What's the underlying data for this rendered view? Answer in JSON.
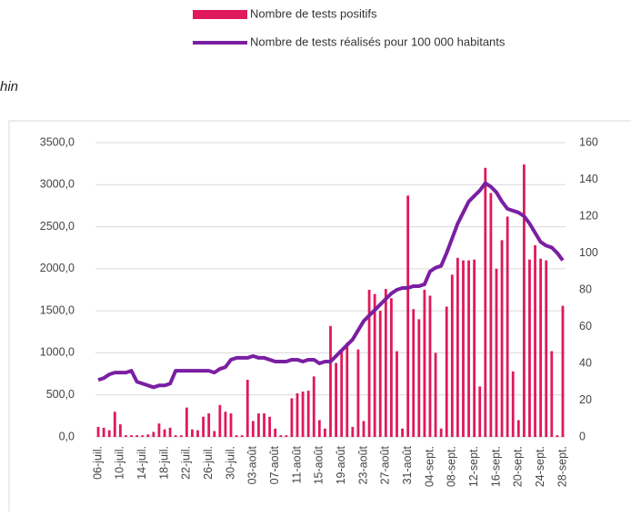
{
  "chart_data": {
    "type": "bar",
    "title": "hin",
    "categories": [
      "06-juil.",
      null,
      null,
      null,
      "10-juil.",
      null,
      null,
      null,
      "14-juil.",
      null,
      null,
      null,
      "18-juil.",
      null,
      null,
      null,
      "22-juil.",
      null,
      null,
      null,
      "26-juil.",
      null,
      null,
      null,
      "30-juil.",
      null,
      null,
      null,
      "03-août",
      null,
      null,
      null,
      "07-août",
      null,
      null,
      null,
      "11-août",
      null,
      null,
      null,
      "15-août",
      null,
      null,
      null,
      "19-août",
      null,
      null,
      null,
      "23-août",
      null,
      null,
      null,
      "27-août",
      null,
      null,
      null,
      "31-août",
      null,
      null,
      null,
      "04-sept.",
      null,
      null,
      null,
      "08-sept.",
      null,
      null,
      null,
      "12-sept.",
      null,
      null,
      null,
      "16-sept.",
      null,
      null,
      null,
      "20-sept.",
      null,
      null,
      null,
      "24-sept.",
      null,
      null,
      null,
      "28-sept."
    ],
    "series": [
      {
        "name": "Nombre de tests positifs",
        "type": "bar",
        "color": "#e0195a",
        "values": [
          120,
          110,
          80,
          300,
          150,
          20,
          20,
          20,
          20,
          30,
          60,
          160,
          90,
          110,
          20,
          20,
          350,
          90,
          80,
          240,
          280,
          70,
          380,
          300,
          280,
          20,
          20,
          680,
          190,
          280,
          280,
          240,
          100,
          20,
          20,
          460,
          520,
          540,
          550,
          720,
          200,
          100,
          1320,
          880,
          1020,
          1120,
          120,
          1040,
          190,
          1750,
          1700,
          1500,
          1760,
          1650,
          1020,
          100,
          2870,
          1520,
          1400,
          1750,
          1680,
          1000,
          100,
          1550,
          1930,
          2130,
          2100,
          2100,
          2110,
          600,
          3200,
          2900,
          2000,
          2340,
          2620,
          780,
          200,
          3240,
          2110,
          2280,
          2120,
          2100,
          1020,
          20,
          1560
        ]
      },
      {
        "name": "Nombre de tests réalisés pour 100 000 habitants",
        "type": "line",
        "axis": "y2",
        "color": "#7a1fa2",
        "values": [
          31,
          32,
          34,
          35,
          35,
          35,
          36,
          30,
          29,
          28,
          27,
          28,
          28,
          29,
          36,
          36,
          36,
          36,
          36,
          36,
          36,
          35,
          37,
          38,
          42,
          43,
          43,
          43,
          44,
          43,
          43,
          42,
          41,
          41,
          41,
          42,
          42,
          41,
          42,
          42,
          40,
          41,
          41,
          44,
          47,
          50,
          53,
          58,
          63,
          66,
          69,
          72,
          75,
          78,
          80,
          81,
          81,
          82,
          82,
          83,
          90,
          92,
          93,
          100,
          108,
          116,
          122,
          128,
          131,
          134,
          138,
          136,
          133,
          128,
          124,
          123,
          122,
          120,
          116,
          111,
          106,
          104,
          103,
          100,
          96
        ]
      }
    ],
    "ylim": [
      0,
      3500
    ],
    "yticks": [
      {
        "value": 0,
        "label": "0,0"
      },
      {
        "value": 500,
        "label": "500,0"
      },
      {
        "value": 1000,
        "label": "1000,0"
      },
      {
        "value": 1500,
        "label": "1500,0"
      },
      {
        "value": 2000,
        "label": "2000,0"
      },
      {
        "value": 2500,
        "label": "2500,0"
      },
      {
        "value": 3000,
        "label": "3000,0"
      },
      {
        "value": 3500,
        "label": "3500,0"
      }
    ],
    "y2lim": [
      0,
      160
    ],
    "y2ticks": [
      0,
      20,
      40,
      60,
      80,
      100,
      120,
      140,
      160
    ],
    "grid": true
  }
}
